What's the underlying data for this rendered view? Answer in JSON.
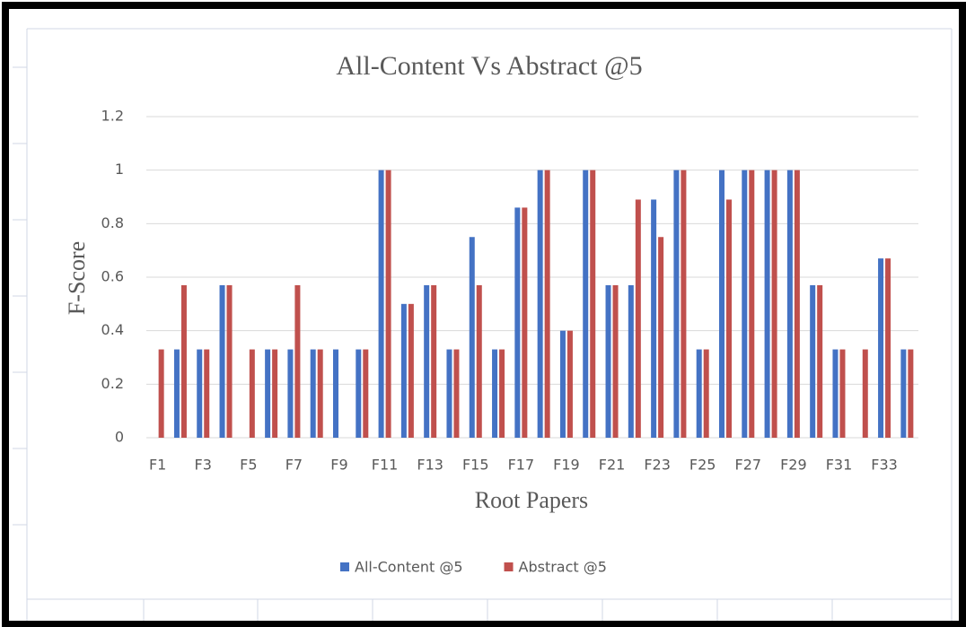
{
  "chart_data": {
    "type": "bar",
    "title": "All-Content Vs Abstract @5",
    "x_label": "Root Papers",
    "y_label": "F-Score",
    "categories": [
      "F1",
      null,
      "F3",
      null,
      "F5",
      null,
      "F7",
      null,
      "F9",
      null,
      "F11",
      null,
      "F13",
      null,
      "F15",
      null,
      "F17",
      null,
      "F19",
      null,
      "F21",
      null,
      "F23",
      null,
      "F25",
      null,
      "F27",
      null,
      "F29",
      null,
      "F31",
      null,
      "F33",
      null
    ],
    "series": [
      {
        "name": "All-Content @5",
        "color": "#4472c4",
        "values": [
          0,
          0.33,
          0.33,
          0.57,
          0,
          0.33,
          0.33,
          0.33,
          0.33,
          0.33,
          1,
          0.5,
          0.57,
          0.33,
          0.75,
          0.33,
          0.86,
          1,
          0.4,
          1,
          0.57,
          0.57,
          0.89,
          1,
          0.33,
          1,
          1,
          1,
          1,
          0.57,
          0.33,
          0,
          0.67,
          0.33
        ]
      },
      {
        "name": "Abstract @5",
        "color": "#c0504d",
        "values": [
          0.33,
          0.57,
          0.33,
          0.57,
          0.33,
          0.33,
          0.57,
          0.33,
          0,
          0.33,
          1,
          0.5,
          0.57,
          0.33,
          0.57,
          0.33,
          0.86,
          1,
          0.4,
          1,
          0.57,
          0.89,
          0.75,
          1,
          0.33,
          0.89,
          1,
          1,
          1,
          0.57,
          0.33,
          0.33,
          0.67,
          0.33
        ]
      }
    ],
    "ylim": [
      0,
      1.2
    ],
    "yticks": [
      0,
      0.2,
      0.4,
      0.6,
      0.8,
      1,
      1.2
    ],
    "grid": true,
    "legend": "bottom"
  }
}
